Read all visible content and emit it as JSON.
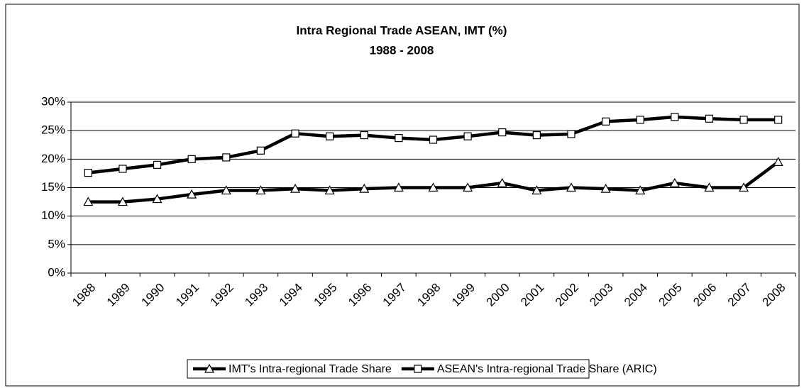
{
  "chart_data": {
    "type": "line",
    "title": "Intra Regional Trade ASEAN, IMT (%)",
    "subtitle": "1988 - 2008",
    "categories": [
      "1988",
      "1989",
      "1990",
      "1991",
      "1992",
      "1993",
      "1994",
      "1995",
      "1996",
      "1997",
      "1998",
      "1999",
      "2000",
      "2001",
      "2002",
      "2003",
      "2004",
      "2005",
      "2006",
      "2007",
      "2008"
    ],
    "series": [
      {
        "name": "IMT's Intra-regional Trade Share",
        "color": "#000000",
        "marker": "triangle",
        "values": [
          12.5,
          12.5,
          13,
          13.8,
          14.5,
          14.5,
          14.8,
          14.5,
          14.8,
          15,
          15,
          15,
          15.8,
          14.5,
          15,
          14.8,
          14.5,
          15.8,
          15,
          15,
          19.5
        ]
      },
      {
        "name": "ASEAN's Intra-regional Trade Share (ARIC)",
        "color": "#000000",
        "marker": "square",
        "values": [
          17.6,
          18.3,
          19,
          20,
          20.3,
          21.5,
          24.5,
          24,
          24.2,
          23.7,
          23.4,
          24,
          24.7,
          24.2,
          24.4,
          26.6,
          26.9,
          27.4,
          27.1,
          26.9,
          26.9
        ]
      }
    ],
    "ylim": [
      0,
      30
    ],
    "yticks": [
      {
        "value": 0,
        "label": "0%"
      },
      {
        "value": 5,
        "label": "5%"
      },
      {
        "value": 10,
        "label": "10%"
      },
      {
        "value": 15,
        "label": "15%"
      },
      {
        "value": 20,
        "label": "20%"
      },
      {
        "value": 25,
        "label": "25%"
      },
      {
        "value": 30,
        "label": "30%"
      }
    ],
    "grid": true,
    "legend": "bottom"
  }
}
